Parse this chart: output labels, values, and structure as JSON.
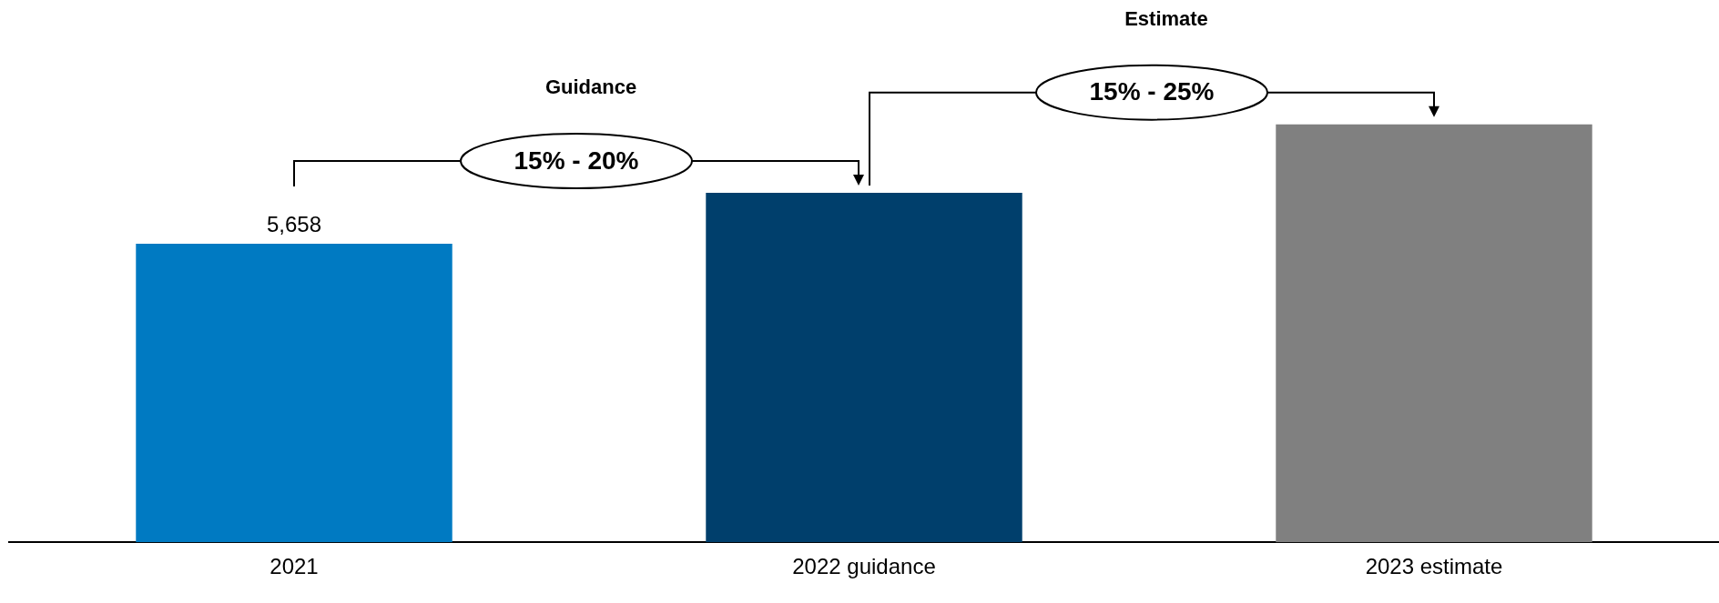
{
  "chart_data": {
    "type": "bar",
    "categories": [
      "2021",
      "2022 guidance",
      "2023 estimate"
    ],
    "values": [
      5658,
      6620,
      7920
    ],
    "colors": [
      "#007ac2",
      "#003f6c",
      "#808080"
    ],
    "value_labels": [
      "5,658",
      null,
      null
    ],
    "tick_labels": "x",
    "annotations": [
      "Guidance",
      "15% - 20%",
      "Estimate",
      "15% - 25%"
    ]
  }
}
